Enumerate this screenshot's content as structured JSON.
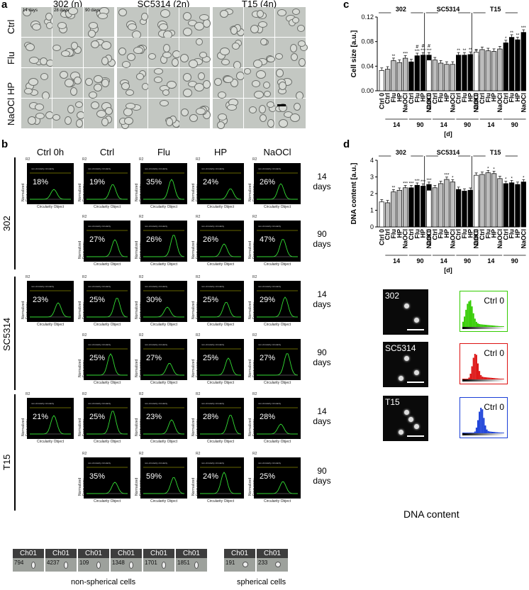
{
  "panel_labels": {
    "a": "a",
    "b": "b",
    "c": "c",
    "d": "d"
  },
  "panel_a": {
    "strains": [
      "302 (n)",
      "SC5314 (2n)",
      "T15 (4n)"
    ],
    "time_labels": [
      "14 days",
      "28 days",
      "90 days"
    ],
    "rows": [
      "Ctrl",
      "Flu",
      "HP",
      "NaOCl"
    ]
  },
  "panel_b": {
    "columns": [
      "Ctrl 0h",
      "Ctrl",
      "Flu",
      "HP",
      "NaOCl"
    ],
    "strains": [
      "302",
      "SC5314",
      "T15"
    ],
    "time_labels": [
      "14\ndays",
      "90\ndays"
    ],
    "r_label": "R2",
    "y_axis": "Normalized Frequency",
    "x_axis": "Circularity Object",
    "legend": [
      "non-circularity",
      "circularity"
    ],
    "grid": [
      {
        "strain": "302",
        "time": "14 days",
        "values": [
          "18%",
          "19%",
          "35%",
          "24%",
          "26%"
        ]
      },
      {
        "strain": "302",
        "time": "90 days",
        "values": [
          null,
          "27%",
          "26%",
          "26%",
          "47%"
        ]
      },
      {
        "strain": "SC5314",
        "time": "14 days",
        "values": [
          "23%",
          "25%",
          "30%",
          "25%",
          "29%"
        ]
      },
      {
        "strain": "SC5314",
        "time": "90 days",
        "values": [
          null,
          "25%",
          "27%",
          "25%",
          "27%"
        ]
      },
      {
        "strain": "T15",
        "time": "14 days",
        "values": [
          "21%",
          "25%",
          "23%",
          "28%",
          "28%"
        ]
      },
      {
        "strain": "T15",
        "time": "90 days",
        "values": [
          null,
          "35%",
          "59%",
          "24%",
          "25%"
        ]
      }
    ],
    "tiles_nonspherical": [
      {
        "header": "Ch01",
        "num": "794"
      },
      {
        "header": "Ch01",
        "num": "4237"
      },
      {
        "header": "Ch01",
        "num": "109"
      },
      {
        "header": "Ch01",
        "num": "1348"
      },
      {
        "header": "Ch01",
        "num": "1701"
      },
      {
        "header": "Ch01",
        "num": "1851"
      }
    ],
    "tiles_spherical": [
      {
        "header": "Ch01",
        "num": "191"
      },
      {
        "header": "Ch01",
        "num": "233"
      }
    ],
    "caption_nonspherical": "non-spherical cells",
    "caption_spherical": "spherical cells"
  },
  "chart_data": [
    {
      "type": "bar",
      "panel": "c",
      "ylabel": "Cell size [a.u.]",
      "xlabel": "[d]",
      "ylim": [
        0,
        0.12
      ],
      "yticks": [
        "0.00",
        "0.04",
        "0.08",
        "0.12"
      ],
      "groups": [
        "302",
        "SC5314",
        "T15"
      ],
      "subgroups": [
        "14",
        "90"
      ],
      "categories": [
        "Ctrl 0",
        "Ctrl",
        "Flu",
        "HP",
        "NaOCl",
        "Ctrl",
        "Flu",
        "HP",
        "NaOCl"
      ],
      "series": [
        {
          "group": "302",
          "values": [
            0.033,
            0.035,
            0.049,
            0.046,
            0.053,
            0.047,
            0.057,
            0.058,
            0.058
          ],
          "stars": [
            "",
            "",
            "**",
            "",
            "***",
            "",
            "***",
            "***",
            "***"
          ],
          "hash": [
            "",
            "",
            "",
            "",
            "",
            "",
            "#",
            "#",
            "#"
          ]
        },
        {
          "group": "SC5314",
          "values": [
            0.05,
            0.05,
            0.045,
            0.043,
            0.043,
            0.058,
            0.058,
            0.059,
            0.057
          ],
          "stars": [
            "",
            "",
            "",
            "",
            "",
            "**",
            "**",
            "**",
            "**"
          ]
        },
        {
          "group": "T15",
          "values": [
            0.063,
            0.067,
            0.065,
            0.064,
            0.068,
            0.078,
            0.087,
            0.083,
            0.095
          ],
          "stars": [
            "",
            "",
            "",
            "",
            "",
            "*",
            "**",
            "**",
            "***"
          ]
        }
      ],
      "colors": {
        "ctrl0": "#ffffff",
        "d14": "#bdbdbd",
        "d90": "#000000"
      }
    },
    {
      "type": "bar",
      "panel": "d",
      "ylabel": "DNA content [a.u.]",
      "xlabel": "[d]",
      "ylim": [
        0,
        4
      ],
      "yticks": [
        "0",
        "1",
        "2",
        "3",
        "4"
      ],
      "groups": [
        "302",
        "SC5314",
        "T15"
      ],
      "subgroups": [
        "14",
        "90"
      ],
      "categories": [
        "Ctrl 0",
        "Ctrl",
        "Flu",
        "HP",
        "NaOCl",
        "Ctrl",
        "Flu",
        "HP",
        "NaOCl"
      ],
      "series": [
        {
          "group": "302",
          "values": [
            1.5,
            1.45,
            2.1,
            2.2,
            2.35,
            2.35,
            2.5,
            2.45,
            2.55
          ],
          "stars": [
            "",
            "",
            "**",
            "",
            "***",
            "***",
            "***",
            "***",
            "***"
          ]
        },
        {
          "group": "SC5314",
          "values": [
            2.2,
            2.35,
            2.6,
            2.85,
            2.7,
            2.25,
            2.15,
            2.2,
            2.2
          ],
          "stars": [
            "",
            "",
            "",
            "***",
            "*",
            "",
            "",
            "",
            ""
          ]
        },
        {
          "group": "T15",
          "values": [
            3.1,
            3.15,
            3.25,
            3.2,
            2.9,
            2.6,
            2.65,
            2.55,
            2.7
          ],
          "stars": [
            "",
            "",
            "*",
            "*",
            "",
            "*",
            "*",
            "",
            "*"
          ]
        }
      ],
      "colors": {
        "ctrl0": "#ffffff",
        "d14": "#bdbdbd",
        "d90": "#000000"
      }
    }
  ],
  "panel_d_images": {
    "labels": [
      "302",
      "SC5314",
      "T15"
    ],
    "hist_label": "Ctrl 0",
    "hist_colors": [
      "#33cc00",
      "#dd1111",
      "#1a3fd8"
    ],
    "caption": "DNA content"
  }
}
